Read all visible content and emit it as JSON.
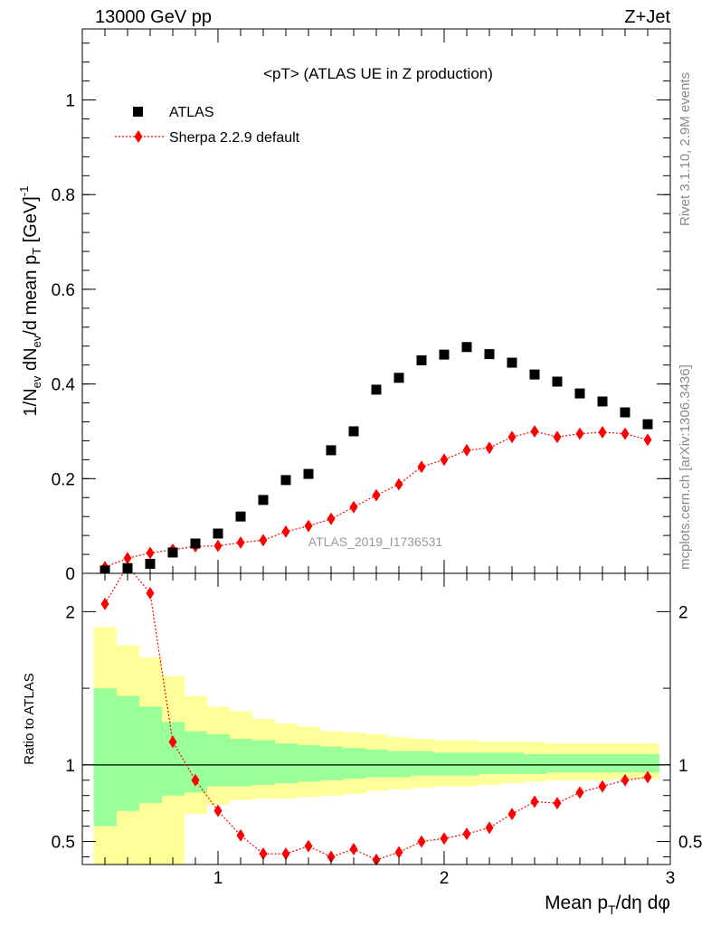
{
  "header": {
    "left": "13000 GeV pp",
    "right": "Z+Jet"
  },
  "side": {
    "upper": "Rivet 3.1.10,  2.9M events",
    "lower": "mcplots.cern.ch [arXiv:1306.3436]"
  },
  "chart_data": [
    {
      "type": "scatter",
      "title": "<pT> (ATLAS UE in Z production)",
      "ylabel": "1/N_ev dN_ev/d mean p_T [GeV]^-1",
      "xlim": [
        0.4,
        3.0
      ],
      "ylim": [
        0,
        1.15
      ],
      "yticks": [
        0,
        0.2,
        0.4,
        0.6,
        0.8,
        1
      ],
      "ytick_labels": [
        "0",
        "0.2",
        "0.4",
        "0.6",
        "0.8",
        "1"
      ],
      "legend_position": "top-left",
      "watermark": "ATLAS_2019_I1736531",
      "series": [
        {
          "name": "ATLAS",
          "color": "#000000",
          "marker": "square",
          "x": [
            0.5,
            0.6,
            0.7,
            0.8,
            0.9,
            1.0,
            1.1,
            1.2,
            1.3,
            1.4,
            1.5,
            1.6,
            1.7,
            1.8,
            1.9,
            2.0,
            2.1,
            2.2,
            2.3,
            2.4,
            2.5,
            2.6,
            2.7,
            2.8,
            2.9
          ],
          "y": [
            0.006,
            0.011,
            0.02,
            0.044,
            0.063,
            0.084,
            0.12,
            0.155,
            0.197,
            0.21,
            0.26,
            0.3,
            0.388,
            0.413,
            0.45,
            0.462,
            0.478,
            0.463,
            0.445,
            0.42,
            0.405,
            0.38,
            0.363,
            0.34,
            0.315
          ]
        },
        {
          "name": "Sherpa 2.2.9 default",
          "color": "#ff0000",
          "marker": "diamond",
          "x": [
            0.5,
            0.6,
            0.7,
            0.8,
            0.9,
            1.0,
            1.1,
            1.2,
            1.3,
            1.4,
            1.5,
            1.6,
            1.7,
            1.8,
            1.9,
            2.0,
            2.1,
            2.2,
            2.3,
            2.4,
            2.5,
            2.6,
            2.7,
            2.8,
            2.9
          ],
          "y": [
            0.013,
            0.032,
            0.043,
            0.05,
            0.057,
            0.058,
            0.065,
            0.07,
            0.088,
            0.1,
            0.115,
            0.14,
            0.165,
            0.188,
            0.225,
            0.24,
            0.26,
            0.265,
            0.288,
            0.3,
            0.288,
            0.295,
            0.298,
            0.295,
            0.282
          ]
        }
      ]
    },
    {
      "type": "scatter",
      "ylabel": "Ratio to ATLAS",
      "xlabel": "Mean p_T/dη dφ",
      "xlim": [
        0.4,
        3.0
      ],
      "ylim": [
        0.35,
        2.25
      ],
      "xticks": [
        1,
        2,
        3
      ],
      "xtick_labels": [
        "1",
        "2",
        "3"
      ],
      "yticks": [
        0.5,
        1,
        2
      ],
      "ytick_labels": [
        "0.5",
        "1",
        "2"
      ],
      "bands": {
        "edges": [
          0.45,
          0.55,
          0.65,
          0.75,
          0.85,
          0.95,
          1.05,
          1.15,
          1.25,
          1.35,
          1.45,
          1.55,
          1.65,
          1.75,
          1.85,
          1.95,
          2.05,
          2.15,
          2.25,
          2.35,
          2.45,
          2.55,
          2.65,
          2.75,
          2.85,
          2.95
        ],
        "green_lo": [
          0.6,
          0.7,
          0.75,
          0.8,
          0.82,
          0.86,
          0.86,
          0.87,
          0.88,
          0.89,
          0.9,
          0.91,
          0.92,
          0.92,
          0.93,
          0.93,
          0.93,
          0.94,
          0.94,
          0.94,
          0.95,
          0.95,
          0.95,
          0.95,
          0.95
        ],
        "green_hi": [
          1.5,
          1.45,
          1.38,
          1.28,
          1.22,
          1.2,
          1.17,
          1.16,
          1.14,
          1.13,
          1.12,
          1.11,
          1.1,
          1.09,
          1.09,
          1.08,
          1.08,
          1.08,
          1.08,
          1.07,
          1.07,
          1.07,
          1.07,
          1.07,
          1.07
        ],
        "yellow_lo": [
          0.35,
          0.35,
          0.35,
          0.35,
          0.68,
          0.74,
          0.77,
          0.78,
          0.78,
          0.79,
          0.8,
          0.81,
          0.83,
          0.84,
          0.85,
          0.86,
          0.86,
          0.87,
          0.88,
          0.89,
          0.9,
          0.9,
          0.9,
          0.91,
          0.91
        ],
        "yellow_hi": [
          1.9,
          1.78,
          1.7,
          1.58,
          1.45,
          1.38,
          1.35,
          1.3,
          1.27,
          1.25,
          1.22,
          1.21,
          1.2,
          1.18,
          1.17,
          1.16,
          1.16,
          1.15,
          1.15,
          1.15,
          1.14,
          1.14,
          1.14,
          1.14,
          1.14
        ],
        "green_color": "#99ff99",
        "yellow_color": "#ffff99"
      },
      "series": [
        {
          "name": "Sherpa 2.2.9 default",
          "color": "#ff0000",
          "marker": "diamond",
          "x": [
            0.5,
            0.6,
            0.7,
            0.8,
            0.9,
            1.0,
            1.1,
            1.2,
            1.3,
            1.4,
            1.5,
            1.6,
            1.7,
            1.8,
            1.9,
            2.0,
            2.1,
            2.2,
            2.3,
            2.4,
            2.5,
            2.6,
            2.7,
            2.8,
            2.9
          ],
          "y": [
            2.05,
            2.3,
            2.12,
            1.15,
            0.9,
            0.7,
            0.54,
            0.42,
            0.42,
            0.47,
            0.4,
            0.45,
            0.38,
            0.43,
            0.5,
            0.52,
            0.55,
            0.59,
            0.68,
            0.76,
            0.75,
            0.82,
            0.86,
            0.9,
            0.92
          ]
        }
      ]
    }
  ]
}
